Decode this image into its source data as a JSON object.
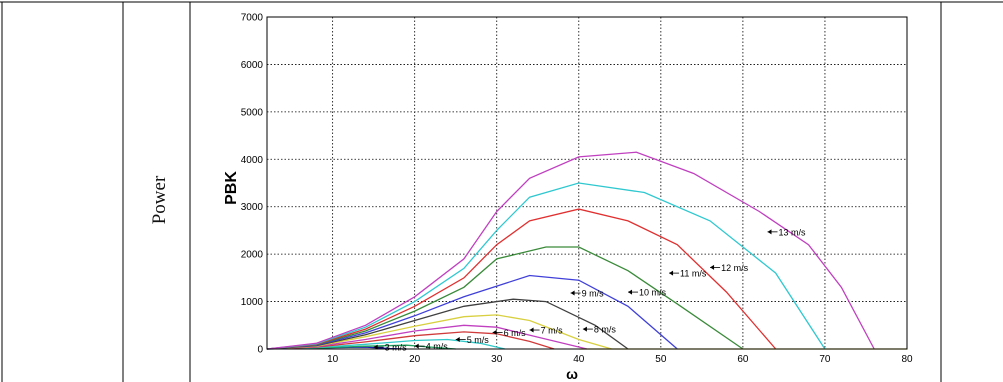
{
  "row_label": "Power",
  "chart_data": {
    "type": "line",
    "title": "",
    "xlabel": "ω",
    "ylabel": "PBK",
    "xlim": [
      2,
      80
    ],
    "ylim": [
      0,
      7000
    ],
    "xticks": [
      10,
      20,
      30,
      40,
      50,
      60,
      70,
      80
    ],
    "yticks": [
      0,
      1000,
      2000,
      3000,
      4000,
      5000,
      6000,
      7000
    ],
    "grid": true,
    "colors": {
      "3 m/s": "#1a1aa8",
      "4 m/s": "#20a060",
      "5 m/s": "#30c8c8",
      "6 m/s": "#d03a3a",
      "7 m/s": "#c040c0",
      "8 m/s": "#d8d040",
      "9 m/s": "#404040",
      "10 m/s": "#4040d8",
      "11 m/s": "#3a8a3a",
      "12 m/s": "#e03030",
      "13 m/s": "#30c8d0",
      "13b": "#c040c0"
    },
    "series": [
      {
        "name": "3 m/s",
        "x": [
          2,
          6,
          10,
          14,
          17,
          19
        ],
        "y": [
          0,
          10,
          30,
          40,
          10,
          0
        ]
      },
      {
        "name": "4 m/s",
        "x": [
          2,
          8,
          14,
          19,
          22,
          25
        ],
        "y": [
          0,
          20,
          60,
          80,
          40,
          0
        ]
      },
      {
        "name": "5 m/s",
        "x": [
          2,
          8,
          14,
          20,
          24,
          28,
          31
        ],
        "y": [
          0,
          30,
          100,
          180,
          200,
          120,
          0
        ]
      },
      {
        "name": "6 m/s",
        "x": [
          2,
          8,
          14,
          20,
          26,
          30,
          34,
          37
        ],
        "y": [
          0,
          40,
          150,
          280,
          360,
          320,
          160,
          0
        ]
      },
      {
        "name": "7 m/s",
        "x": [
          2,
          8,
          14,
          20,
          26,
          30,
          35,
          41
        ],
        "y": [
          0,
          50,
          200,
          380,
          500,
          460,
          250,
          0
        ]
      },
      {
        "name": "8 m/s",
        "x": [
          2,
          8,
          14,
          20,
          26,
          30,
          34,
          40,
          44
        ],
        "y": [
          0,
          60,
          260,
          480,
          680,
          720,
          600,
          200,
          0
        ]
      },
      {
        "name": "9 m/s",
        "x": [
          2,
          8,
          14,
          20,
          26,
          32,
          36,
          42,
          46
        ],
        "y": [
          0,
          70,
          300,
          600,
          900,
          1050,
          1000,
          500,
          0
        ]
      },
      {
        "name": "10 m/s",
        "x": [
          2,
          8,
          14,
          20,
          26,
          34,
          40,
          46,
          52
        ],
        "y": [
          0,
          80,
          340,
          700,
          1100,
          1550,
          1450,
          900,
          0
        ]
      },
      {
        "name": "11 m/s",
        "x": [
          2,
          8,
          14,
          20,
          26,
          30,
          36,
          40,
          46,
          52,
          60
        ],
        "y": [
          0,
          90,
          380,
          800,
          1300,
          1900,
          2150,
          2150,
          1650,
          950,
          0
        ]
      },
      {
        "name": "12 m/s",
        "x": [
          2,
          8,
          14,
          20,
          26,
          30,
          34,
          40,
          46,
          52,
          58,
          64
        ],
        "y": [
          0,
          100,
          420,
          900,
          1500,
          2200,
          2700,
          2950,
          2700,
          2200,
          1200,
          0
        ]
      },
      {
        "name": "13 m/s",
        "x": [
          2,
          8,
          14,
          20,
          26,
          30,
          34,
          40,
          48,
          56,
          64,
          70
        ],
        "y": [
          0,
          110,
          460,
          1000,
          1700,
          2500,
          3200,
          3500,
          3300,
          2700,
          1600,
          0
        ]
      },
      {
        "name": "",
        "x": [
          2,
          8,
          14,
          20,
          26,
          30,
          34,
          40,
          47,
          54,
          62,
          68,
          72,
          76
        ],
        "y": [
          0,
          120,
          500,
          1100,
          1900,
          2900,
          3600,
          4050,
          4150,
          3700,
          2900,
          2200,
          1300,
          0
        ]
      }
    ],
    "annotations": [
      "3 m/s",
      "4 m/s",
      "5 m/s",
      "6 m/s",
      "7 m/s",
      "8 m/s",
      "9 m/s",
      "10 m/s",
      "11 m/s",
      "12 m/s",
      "13 m/s"
    ]
  }
}
